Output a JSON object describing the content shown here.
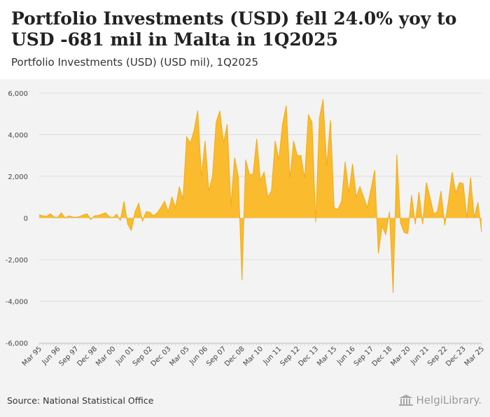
{
  "header": {
    "title": "Portfolio Investments (USD) fell 24.0% yoy to USD -681 mil in Malta in 1Q2025",
    "subtitle": "Portfolio Investments (USD) (USD mil), 1Q2025"
  },
  "footer": {
    "source": "Source: National Statistical Office",
    "brand": "HelgiLibrary."
  },
  "colors": {
    "fill": "#fbbb2e",
    "stroke": "#f0ac18",
    "grid": "#dcdcdc",
    "background": "#f3f3f3"
  },
  "chart_data": {
    "type": "area",
    "title": "Portfolio Investments (USD) (USD mil), 1Q2025",
    "xlabel": "",
    "ylabel": "",
    "ylim": [
      -6000,
      6000
    ],
    "yticks": [
      -6000,
      -4000,
      -2000,
      0,
      2000,
      4000,
      6000
    ],
    "ytick_labels": [
      "-6,000",
      "-4,000",
      "-2,000",
      "0",
      "2,000",
      "4,000",
      "6,000"
    ],
    "xtick_labels": [
      "Mar 95",
      "Jun 96",
      "Sep 97",
      "Dec 98",
      "Mar 00",
      "Jun 01",
      "Sep 02",
      "Dec 03",
      "Mar 05",
      "Jun 06",
      "Sep 07",
      "Dec 08",
      "Mar 10",
      "Jun 11",
      "Sep 12",
      "Dec 13",
      "Mar 15",
      "Jun 16",
      "Sep 17",
      "Dec 18",
      "Mar 20",
      "Jun 21",
      "Sep 22",
      "Dec 23",
      "Mar 25"
    ],
    "xtick_index": [
      0,
      5,
      10,
      15,
      20,
      25,
      30,
      35,
      40,
      45,
      50,
      55,
      60,
      65,
      70,
      75,
      80,
      85,
      90,
      95,
      100,
      105,
      110,
      115,
      120
    ],
    "grid": true,
    "series": [
      {
        "name": "Portfolio Investments (USD)",
        "values": [
          150,
          100,
          80,
          200,
          50,
          30,
          250,
          0,
          100,
          50,
          30,
          70,
          150,
          200,
          -80,
          100,
          120,
          180,
          250,
          60,
          20,
          180,
          -120,
          800,
          -300,
          -600,
          300,
          700,
          -150,
          300,
          280,
          100,
          250,
          500,
          800,
          300,
          1000,
          500,
          1500,
          900,
          3900,
          3600,
          4200,
          5150,
          2000,
          3700,
          1300,
          2000,
          4600,
          5150,
          3600,
          4500,
          600,
          2900,
          2000,
          -3000,
          2800,
          2100,
          2100,
          3800,
          1800,
          2200,
          1000,
          1300,
          3700,
          2800,
          4500,
          5400,
          1900,
          3700,
          3000,
          3000,
          1900,
          4950,
          4600,
          -200,
          4800,
          5700,
          2500,
          4700,
          500,
          400,
          800,
          2700,
          1200,
          2600,
          1000,
          1500,
          1000,
          500,
          1400,
          2300,
          -1700,
          -400,
          -800,
          300,
          -3600,
          3050,
          -250,
          -700,
          -750,
          1100,
          -300,
          1250,
          -300,
          1700,
          1000,
          200,
          300,
          1300,
          -350,
          800,
          2200,
          1200,
          1700,
          1650,
          0,
          1950,
          0,
          750,
          -681
        ]
      }
    ]
  }
}
